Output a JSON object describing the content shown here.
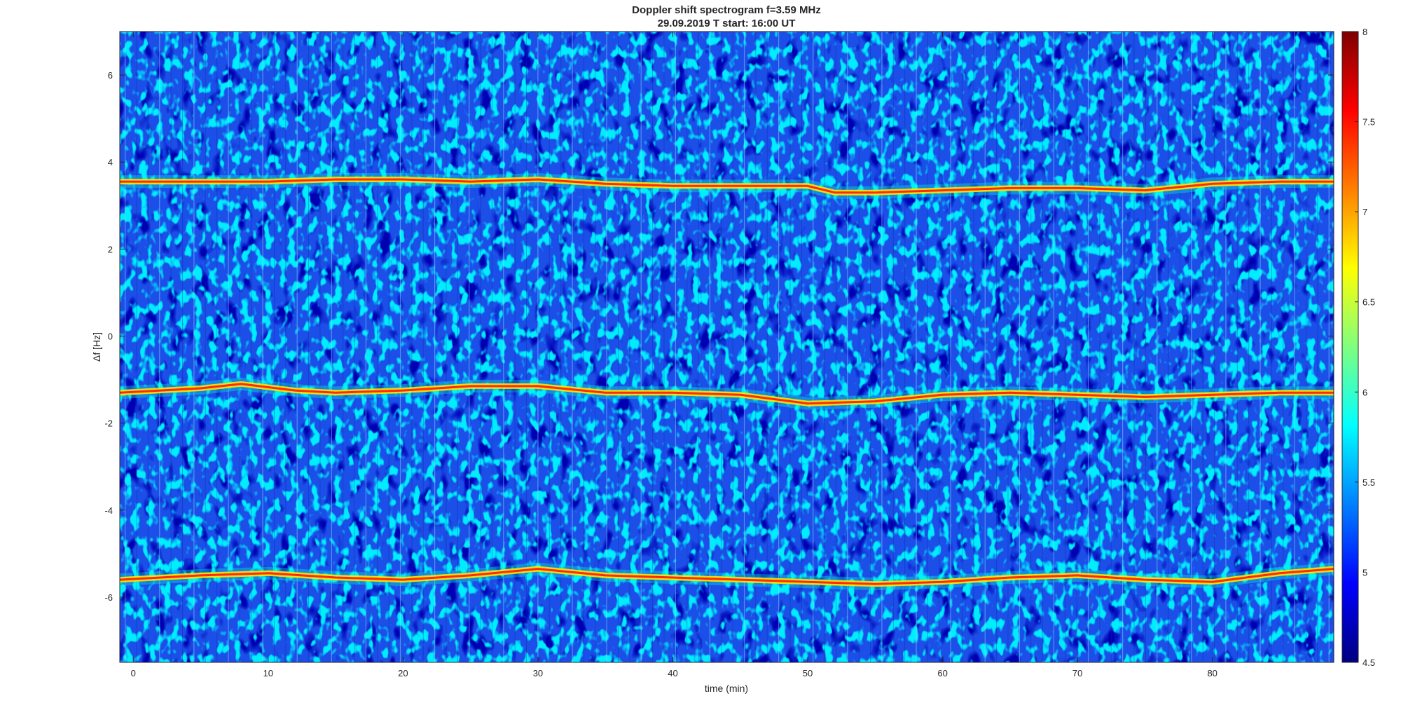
{
  "chart_data": {
    "type": "heatmap",
    "title": "Doppler shift spectrogram f=3.59 MHz",
    "subtitle": "29.09.2019    T start: 16:00 UT",
    "xlabel": "time (min)",
    "ylabel": "Δf [Hz]",
    "xlim": [
      -1,
      89
    ],
    "ylim": [
      -7.5,
      7
    ],
    "xticks": [
      0,
      10,
      20,
      30,
      40,
      50,
      60,
      70,
      80
    ],
    "yticks": [
      -6,
      -4,
      -2,
      0,
      2,
      4,
      6
    ],
    "colorbar": {
      "colormap": "jet",
      "range": [
        4.5,
        8
      ],
      "ticks": [
        "4.5",
        "5",
        "5.5",
        "6",
        "6.5",
        "7",
        "7.5",
        "8"
      ]
    },
    "traces": [
      {
        "x": [
          -1,
          5,
          10,
          15,
          20,
          25,
          30,
          35,
          40,
          45,
          50,
          52,
          55,
          60,
          65,
          70,
          75,
          80,
          85,
          89
        ],
        "y": [
          3.55,
          3.55,
          3.55,
          3.6,
          3.6,
          3.55,
          3.6,
          3.5,
          3.45,
          3.45,
          3.45,
          3.3,
          3.3,
          3.35,
          3.4,
          3.4,
          3.35,
          3.5,
          3.55,
          3.55
        ]
      },
      {
        "x": [
          -1,
          5,
          8,
          12,
          15,
          20,
          25,
          30,
          35,
          40,
          45,
          50,
          55,
          60,
          65,
          70,
          75,
          80,
          85,
          89
        ],
        "y": [
          -1.3,
          -1.2,
          -1.1,
          -1.25,
          -1.3,
          -1.25,
          -1.15,
          -1.15,
          -1.3,
          -1.3,
          -1.35,
          -1.55,
          -1.5,
          -1.35,
          -1.3,
          -1.35,
          -1.4,
          -1.35,
          -1.3,
          -1.3
        ]
      },
      {
        "x": [
          -1,
          5,
          10,
          15,
          20,
          25,
          30,
          35,
          40,
          45,
          50,
          55,
          60,
          65,
          70,
          75,
          80,
          85,
          89
        ],
        "y": [
          -5.6,
          -5.5,
          -5.45,
          -5.55,
          -5.6,
          -5.5,
          -5.35,
          -5.5,
          -5.55,
          -5.6,
          -5.65,
          -5.7,
          -5.65,
          -5.55,
          -5.5,
          -5.6,
          -5.65,
          -5.45,
          -5.35
        ]
      }
    ],
    "grid": false,
    "legend": "none"
  }
}
